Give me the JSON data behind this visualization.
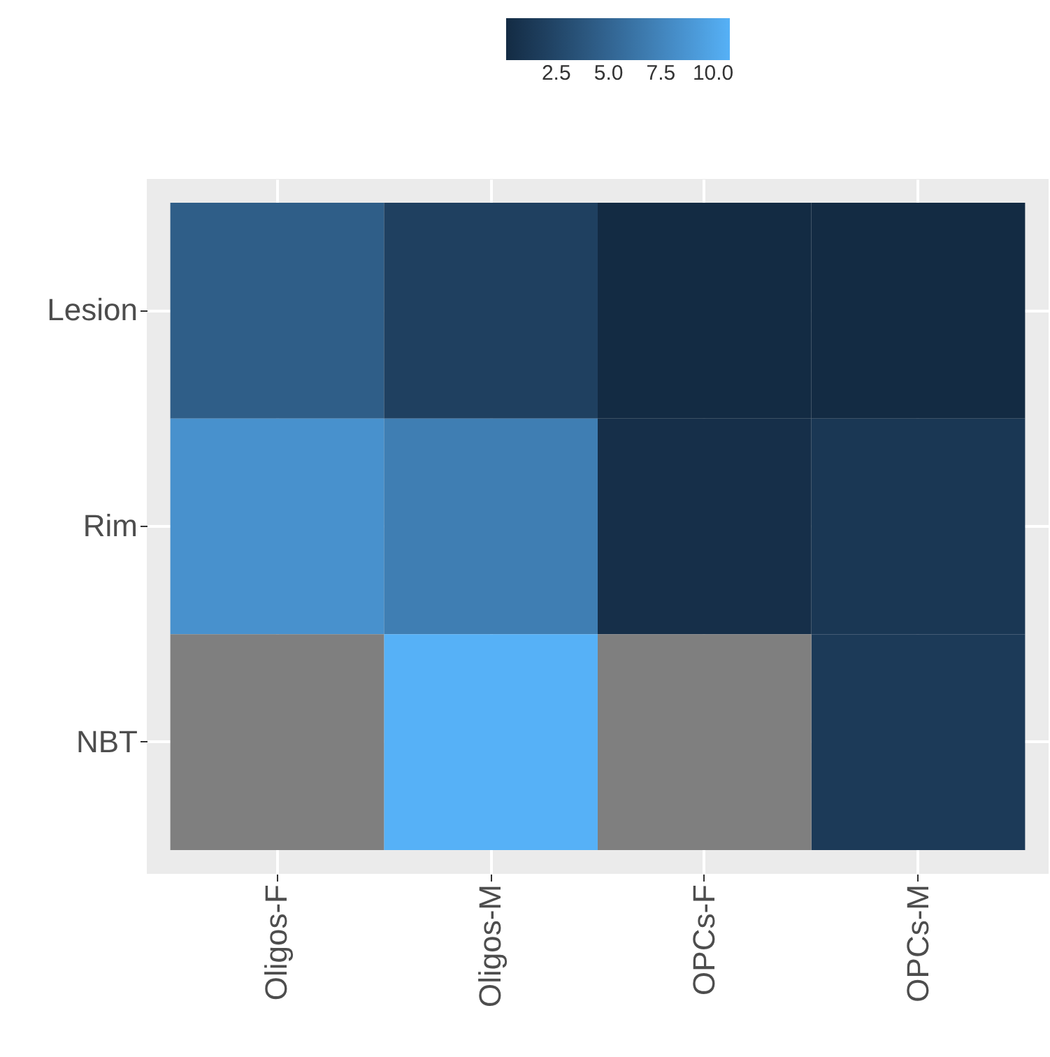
{
  "chart_data": {
    "type": "heatmap",
    "categories": [
      "Oligos-F",
      "Oligos-M",
      "OPCs-F",
      "OPCs-M"
    ],
    "y_categories": [
      "Lesion",
      "Rim",
      "NBT"
    ],
    "cells": [
      [
        4.5,
        2.0,
        0.1,
        0.1
      ],
      [
        8.5,
        7.0,
        0.5,
        1.2
      ],
      [
        null,
        10.8,
        null,
        1.5
      ]
    ],
    "clim": [
      0.1,
      10.8
    ],
    "cticks": [
      2.5,
      {
        "value": 5,
        "label": "5.0"
      },
      7.5,
      {
        "value": 10,
        "label": "10.0"
      }
    ],
    "grid": true
  }
}
